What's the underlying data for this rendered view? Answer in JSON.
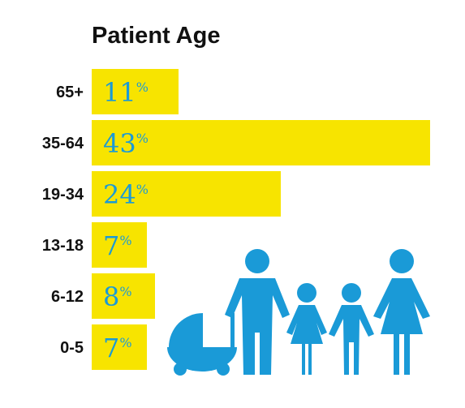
{
  "chart_data": {
    "type": "bar",
    "orientation": "horizontal",
    "title": "Patient Age",
    "categories": [
      "65+",
      "35-64",
      "19-34",
      "13-18",
      "6-12",
      "0-5"
    ],
    "values": [
      11,
      43,
      24,
      7,
      8,
      7
    ],
    "value_suffix": "%",
    "xlim": [
      0,
      43
    ],
    "grid": false,
    "legend": "none"
  },
  "colors": {
    "bar": "#F7E400",
    "value_text": "#1A9AD7",
    "label_text": "#111111",
    "icon": "#1A9AD7"
  },
  "illustration": {
    "icons": [
      "stroller-icon",
      "man-icon",
      "girl-icon",
      "boy-icon",
      "woman-icon"
    ]
  }
}
